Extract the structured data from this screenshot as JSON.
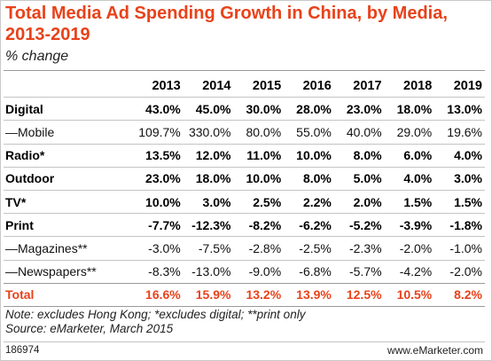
{
  "title": "Total Media Ad Spending Growth in China, by Media, 2013-2019",
  "subtitle": "% change",
  "chart_data": {
    "type": "table",
    "title": "Total Media Ad Spending Growth in China, by Media, 2013-2019",
    "subtitle": "% change",
    "columns": [
      "2013",
      "2014",
      "2015",
      "2016",
      "2017",
      "2018",
      "2019"
    ],
    "rows": [
      {
        "label": "Digital",
        "style": "bold",
        "values": [
          "43.0%",
          "45.0%",
          "30.0%",
          "28.0%",
          "23.0%",
          "18.0%",
          "13.0%"
        ]
      },
      {
        "label": "—Mobile",
        "style": "sub",
        "values": [
          "109.7%",
          "330.0%",
          "80.0%",
          "55.0%",
          "40.0%",
          "29.0%",
          "19.6%"
        ]
      },
      {
        "label": "Radio*",
        "style": "bold",
        "values": [
          "13.5%",
          "12.0%",
          "11.0%",
          "10.0%",
          "8.0%",
          "6.0%",
          "4.0%"
        ]
      },
      {
        "label": "Outdoor",
        "style": "bold",
        "values": [
          "23.0%",
          "18.0%",
          "10.0%",
          "8.0%",
          "5.0%",
          "4.0%",
          "3.0%"
        ]
      },
      {
        "label": "TV*",
        "style": "bold",
        "values": [
          "10.0%",
          "3.0%",
          "2.5%",
          "2.2%",
          "2.0%",
          "1.5%",
          "1.5%"
        ]
      },
      {
        "label": "Print",
        "style": "bold",
        "values": [
          "-7.7%",
          "-12.3%",
          "-8.2%",
          "-6.2%",
          "-5.2%",
          "-3.9%",
          "-1.8%"
        ]
      },
      {
        "label": "—Magazines**",
        "style": "sub",
        "values": [
          "-3.0%",
          "-7.5%",
          "-2.8%",
          "-2.5%",
          "-2.3%",
          "-2.0%",
          "-1.0%"
        ]
      },
      {
        "label": "—Newspapers**",
        "style": "sub",
        "values": [
          "-8.3%",
          "-13.0%",
          "-9.0%",
          "-6.8%",
          "-5.7%",
          "-4.2%",
          "-2.0%"
        ]
      },
      {
        "label": "Total",
        "style": "total",
        "values": [
          "16.6%",
          "15.9%",
          "13.2%",
          "13.9%",
          "12.5%",
          "10.5%",
          "8.2%"
        ]
      }
    ]
  },
  "note_line1": "Note: excludes Hong Kong; *excludes digital; **print only",
  "note_line2": "Source: eMarketer, March 2015",
  "footer": {
    "chart_id": "186974",
    "site": "www.eMarketer.com"
  },
  "colors": {
    "accent": "#e8421a",
    "rule": "#c4c4c4"
  }
}
